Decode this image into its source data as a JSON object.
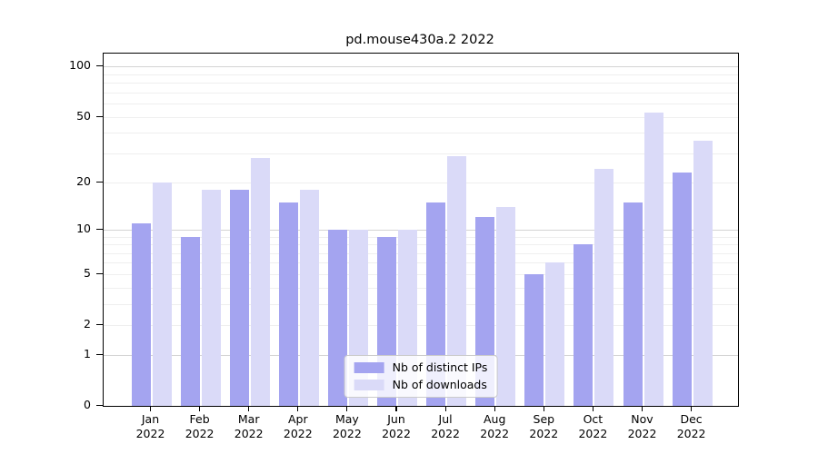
{
  "figure": {
    "background": "#ffffff",
    "title": "pd.mouse430a.2 2022"
  },
  "chart_data": {
    "type": "bar",
    "title": "pd.mouse430a.2 2022",
    "x": {
      "months": [
        "Jan",
        "Feb",
        "Mar",
        "Apr",
        "May",
        "Jun",
        "Jul",
        "Aug",
        "Sep",
        "Oct",
        "Nov",
        "Dec"
      ],
      "year": "2022"
    },
    "series": [
      {
        "name": "Nb of distinct IPs",
        "color": "#a4a4f0",
        "values": [
          11,
          9,
          18,
          15,
          10,
          9,
          15,
          12,
          5,
          8,
          15,
          23
        ]
      },
      {
        "name": "Nb of downloads",
        "color": "#dadaf8",
        "values": [
          20,
          18,
          28,
          18,
          10,
          10,
          29,
          14,
          6,
          24,
          53,
          36
        ]
      }
    ],
    "y_axis": {
      "scale": "log1p",
      "ylim": [
        0,
        119.5
      ],
      "tick_values": [
        0,
        1,
        2,
        5,
        10,
        20,
        50,
        100
      ],
      "tick_labels": [
        "0",
        "1",
        "2",
        "5",
        "10",
        "20",
        "50",
        "100"
      ],
      "major_gridlines": [
        1,
        10,
        100
      ],
      "minor_gridlines": [
        2,
        3,
        4,
        5,
        6,
        7,
        8,
        9,
        20,
        30,
        40,
        50,
        60,
        70,
        80,
        90
      ],
      "grid_major_color": "#d4d4d4",
      "grid_minor_color": "#efefef"
    },
    "legend": {
      "position": "lower center",
      "entries": [
        "Nb of distinct IPs",
        "Nb of downloads"
      ]
    }
  }
}
